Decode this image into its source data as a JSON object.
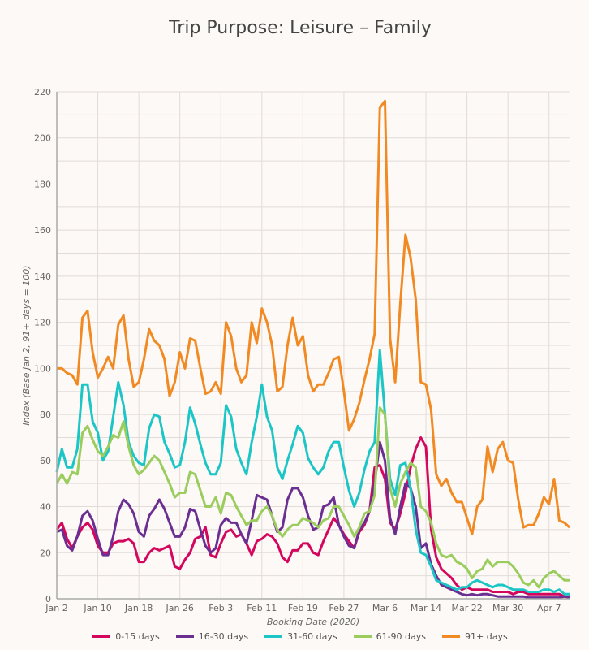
{
  "chart_data": {
    "type": "line",
    "title": "Trip Purpose: Leisure – Family",
    "xlabel": "Booking Date (2020)",
    "ylabel": "Index (Base Jan 2, 91+ days = 100)",
    "ylim": [
      0,
      220
    ],
    "yticks": [
      0,
      20,
      40,
      60,
      80,
      100,
      120,
      140,
      160,
      180,
      200,
      220
    ],
    "xtick_labels": [
      "Jan 2",
      "Jan 10",
      "Jan 18",
      "Jan 26",
      "Feb 3",
      "Feb 11",
      "Feb 19",
      "Feb 27",
      "Mar 6",
      "Mar 14",
      "Mar 22",
      "Mar 30",
      "Apr 7"
    ],
    "grid": true,
    "legend_placement": "bottom",
    "x": [
      "Jan 2",
      "Jan 3",
      "Jan 4",
      "Jan 5",
      "Jan 6",
      "Jan 7",
      "Jan 8",
      "Jan 9",
      "Jan 10",
      "Jan 11",
      "Jan 12",
      "Jan 13",
      "Jan 14",
      "Jan 15",
      "Jan 16",
      "Jan 17",
      "Jan 18",
      "Jan 19",
      "Jan 20",
      "Jan 21",
      "Jan 22",
      "Jan 23",
      "Jan 24",
      "Jan 25",
      "Jan 26",
      "Jan 27",
      "Jan 28",
      "Jan 29",
      "Jan 30",
      "Jan 31",
      "Feb 1",
      "Feb 2",
      "Feb 3",
      "Feb 4",
      "Feb 5",
      "Feb 6",
      "Feb 7",
      "Feb 8",
      "Feb 9",
      "Feb 10",
      "Feb 11",
      "Feb 12",
      "Feb 13",
      "Feb 14",
      "Feb 15",
      "Feb 16",
      "Feb 17",
      "Feb 18",
      "Feb 19",
      "Feb 20",
      "Feb 21",
      "Feb 22",
      "Feb 23",
      "Feb 24",
      "Feb 25",
      "Feb 26",
      "Feb 27",
      "Feb 28",
      "Feb 29",
      "Mar 1",
      "Mar 2",
      "Mar 3",
      "Mar 4",
      "Mar 5",
      "Mar 6",
      "Mar 7",
      "Mar 8",
      "Mar 9",
      "Mar 10",
      "Mar 11",
      "Mar 12",
      "Mar 13",
      "Mar 14",
      "Mar 15",
      "Mar 16",
      "Mar 17",
      "Mar 18",
      "Mar 19",
      "Mar 20",
      "Mar 21",
      "Mar 22",
      "Mar 23",
      "Mar 24",
      "Mar 25",
      "Mar 26",
      "Mar 27",
      "Mar 28",
      "Mar 29",
      "Mar 30",
      "Mar 31",
      "Apr 1",
      "Apr 2",
      "Apr 3",
      "Apr 4",
      "Apr 5",
      "Apr 6",
      "Apr 7",
      "Apr 8",
      "Apr 9",
      "Apr 10",
      "Apr 11"
    ],
    "series": [
      {
        "name": "0-15 days",
        "color": "#d4075f",
        "values": [
          30,
          33,
          26,
          22,
          27,
          31,
          33,
          30,
          23,
          20,
          20,
          24,
          25,
          25,
          26,
          24,
          16,
          16,
          20,
          22,
          21,
          22,
          23,
          14,
          13,
          17,
          20,
          26,
          27,
          31,
          19,
          18,
          24,
          29,
          30,
          27,
          28,
          24,
          19,
          25,
          26,
          28,
          27,
          24,
          18,
          16,
          21,
          21,
          24,
          24,
          20,
          19,
          25,
          30,
          35,
          32,
          28,
          25,
          22,
          29,
          32,
          38,
          57,
          58,
          52,
          33,
          30,
          37,
          46,
          57,
          65,
          70,
          66,
          30,
          18,
          13,
          11,
          9,
          6,
          4,
          5,
          4,
          4,
          4,
          4,
          3,
          3,
          3,
          3,
          2,
          3,
          3,
          2,
          2,
          2,
          2,
          2,
          2,
          2,
          1,
          1
        ]
      },
      {
        "name": "16-30 days",
        "color": "#6b2f92",
        "values": [
          29,
          30,
          23,
          21,
          27,
          36,
          38,
          34,
          26,
          19,
          19,
          27,
          38,
          43,
          41,
          37,
          29,
          27,
          36,
          39,
          43,
          39,
          33,
          27,
          27,
          31,
          39,
          38,
          30,
          23,
          20,
          22,
          32,
          35,
          33,
          33,
          28,
          24,
          34,
          45,
          44,
          43,
          36,
          29,
          31,
          43,
          48,
          48,
          44,
          36,
          30,
          31,
          40,
          41,
          44,
          32,
          27,
          23,
          22,
          30,
          33,
          38,
          50,
          68,
          60,
          35,
          28,
          40,
          50,
          48,
          40,
          22,
          24,
          15,
          10,
          6,
          5,
          4,
          3,
          2,
          1.5,
          2,
          1.5,
          2,
          2,
          1.5,
          1,
          1,
          1,
          1,
          1,
          1,
          0.5,
          0.5,
          0.5,
          0.5,
          0.5,
          0.5,
          0.5,
          1,
          0.5
        ]
      },
      {
        "name": "31-60 days",
        "color": "#1cc6c6",
        "values": [
          55,
          65,
          57,
          57,
          65,
          93,
          93,
          77,
          72,
          60,
          64,
          79,
          94,
          84,
          68,
          62,
          59,
          58,
          74,
          80,
          79,
          68,
          63,
          57,
          58,
          68,
          83,
          76,
          67,
          59,
          54,
          54,
          59,
          84,
          79,
          65,
          59,
          54,
          68,
          79,
          93,
          79,
          73,
          57,
          52,
          60,
          67,
          75,
          72,
          61,
          57,
          54,
          57,
          64,
          68,
          68,
          57,
          47,
          40,
          46,
          56,
          64,
          68,
          108,
          80,
          52,
          45,
          58,
          59,
          48,
          30,
          20,
          19,
          14,
          8,
          7,
          6,
          5,
          4,
          5,
          5,
          7,
          8,
          7,
          6,
          5,
          6,
          6,
          5,
          4,
          4,
          4,
          3,
          3,
          3,
          4,
          4,
          3,
          4,
          2,
          2
        ]
      },
      {
        "name": "61-90 days",
        "color": "#9bcd5e",
        "values": [
          50,
          54,
          50,
          55,
          54,
          72,
          75,
          69,
          64,
          62,
          66,
          71,
          70,
          77,
          66,
          58,
          54,
          56,
          59,
          62,
          60,
          55,
          50,
          44,
          46,
          46,
          55,
          54,
          47,
          40,
          40,
          44,
          37,
          46,
          45,
          40,
          36,
          32,
          34,
          34,
          38,
          40,
          36,
          30,
          27,
          30,
          32,
          32,
          35,
          34,
          33,
          31,
          34,
          35,
          40,
          40,
          36,
          32,
          27,
          31,
          37,
          38,
          45,
          83,
          80,
          48,
          40,
          50,
          55,
          59,
          57,
          40,
          38,
          33,
          24,
          19,
          18,
          19,
          16,
          15,
          13,
          9,
          12,
          13,
          17,
          14,
          16,
          16,
          16,
          14,
          11,
          7,
          6,
          8,
          5,
          9,
          11,
          12,
          10,
          8,
          8
        ]
      },
      {
        "name": "91+ days",
        "color": "#f28a24",
        "values": [
          100,
          100,
          98,
          97,
          93,
          122,
          125,
          107,
          96,
          100,
          105,
          100,
          119,
          123,
          104,
          92,
          94,
          104,
          117,
          112,
          110,
          104,
          88,
          94,
          107,
          100,
          113,
          112,
          100,
          89,
          90,
          94,
          89,
          120,
          114,
          100,
          94,
          97,
          120,
          111,
          126,
          120,
          110,
          90,
          92,
          110,
          122,
          110,
          114,
          97,
          90,
          93,
          93,
          98,
          104,
          105,
          90,
          73,
          78,
          85,
          95,
          104,
          115,
          213,
          216,
          113,
          94,
          128,
          158,
          148,
          130,
          94,
          93,
          82,
          54,
          49,
          52,
          46,
          42,
          42,
          35,
          28,
          40,
          43,
          66,
          55,
          65,
          68,
          60,
          59,
          43,
          31,
          32,
          32,
          37,
          44,
          41,
          52,
          34,
          33,
          31
        ]
      }
    ]
  }
}
